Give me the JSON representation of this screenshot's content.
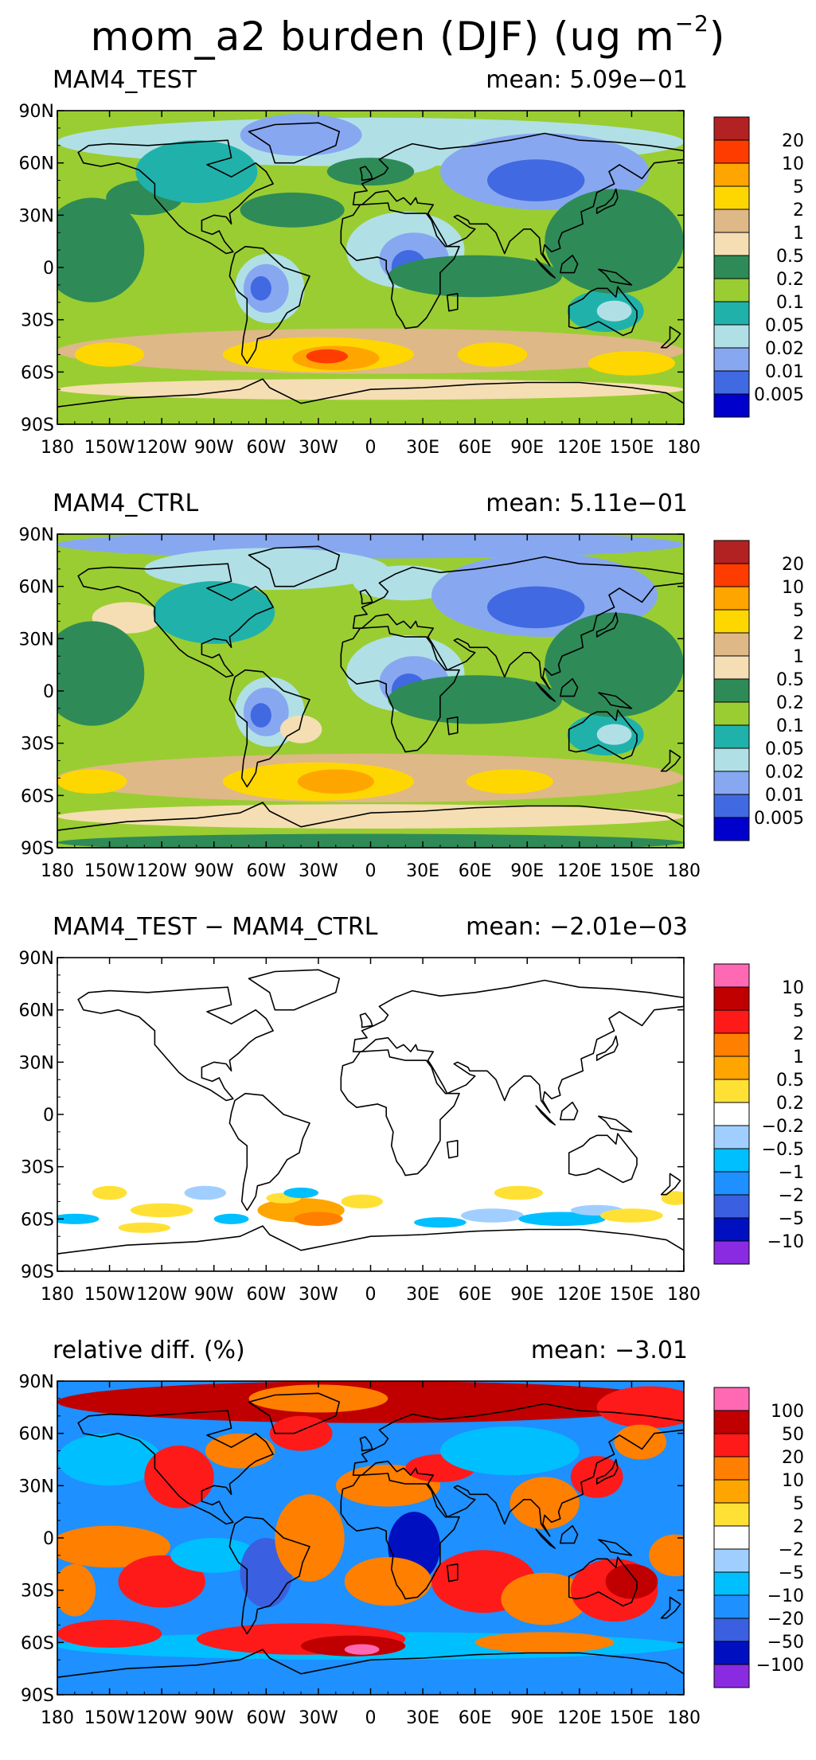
{
  "chart_data": {
    "type": "heatmap",
    "title": "mom_a2 burden (DJF) (ug m",
    "title_superscript": "−2",
    "title_suffix": ")",
    "x_ticks": [
      "180",
      "150W",
      "120W",
      "90W",
      "60W",
      "30W",
      "0",
      "30E",
      "60E",
      "90E",
      "120E",
      "150E",
      "180"
    ],
    "y_ticks": [
      "90N",
      "60N",
      "30N",
      "0",
      "30S",
      "60S",
      "90S"
    ],
    "panels": [
      {
        "name": "MAM4_TEST",
        "mean_label": "mean:",
        "mean": "5.09e−01",
        "colorbar_labels": [
          "20",
          "10",
          "5",
          "2",
          "1",
          "0.5",
          "0.2",
          "0.1",
          "0.05",
          "0.02",
          "0.01",
          "0.005"
        ],
        "colorbar_colors": [
          "#b22222",
          "#ff3c00",
          "#ffa500",
          "#ffd700",
          "#deb887",
          "#f5deb3",
          "#2e8b57",
          "#9acd32",
          "#20b2aa",
          "#b0e0e6",
          "#87a8f0",
          "#4169e1",
          "#0000cd"
        ]
      },
      {
        "name": "MAM4_CTRL",
        "mean_label": "mean:",
        "mean": "5.11e−01",
        "colorbar_labels": [
          "20",
          "10",
          "5",
          "2",
          "1",
          "0.5",
          "0.2",
          "0.1",
          "0.05",
          "0.02",
          "0.01",
          "0.005"
        ],
        "colorbar_colors": [
          "#b22222",
          "#ff3c00",
          "#ffa500",
          "#ffd700",
          "#deb887",
          "#f5deb3",
          "#2e8b57",
          "#9acd32",
          "#20b2aa",
          "#b0e0e6",
          "#87a8f0",
          "#4169e1",
          "#0000cd"
        ]
      },
      {
        "name": "MAM4_TEST − MAM4_CTRL",
        "mean_label": "mean:",
        "mean": "−2.01e−03",
        "colorbar_labels": [
          "10",
          "5",
          "2",
          "1",
          "0.5",
          "0.2",
          "−0.2",
          "−0.5",
          "−1",
          "−2",
          "−5",
          "−10"
        ],
        "colorbar_colors": [
          "#ff69b4",
          "#c00000",
          "#ff1a1a",
          "#ff7f00",
          "#ffa500",
          "#ffe135",
          "#ffffff",
          "#a0cfff",
          "#00bfff",
          "#1e90ff",
          "#3a5fe0",
          "#0010c0",
          "#8a2be2"
        ]
      },
      {
        "name": "relative diff. (%)",
        "mean_label": "mean:",
        "mean": "−3.01",
        "colorbar_labels": [
          "100",
          "50",
          "20",
          "10",
          "5",
          "2",
          "−2",
          "−5",
          "−10",
          "−20",
          "−50",
          "−100"
        ],
        "colorbar_colors": [
          "#ff69b4",
          "#c00000",
          "#ff1a1a",
          "#ff7f00",
          "#ffa500",
          "#ffe135",
          "#ffffff",
          "#a0cfff",
          "#00bfff",
          "#1e90ff",
          "#3a5fe0",
          "#0010c0",
          "#8a2be2"
        ]
      }
    ]
  }
}
